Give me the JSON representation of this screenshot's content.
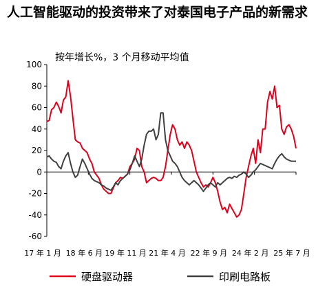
{
  "title": "人工智能驱动的投资带来了对泰国电子产品的新需求",
  "chart_data": {
    "type": "line",
    "subtitle": "按年增长%，3 个月移动平均值",
    "title": "",
    "xlabel": "",
    "ylabel": "",
    "ylim": [
      -60,
      100
    ],
    "yticks": [
      100,
      80,
      60,
      40,
      20,
      0,
      -20,
      -40,
      -60
    ],
    "x_start": "2017-01",
    "x_end": "2025-07",
    "xticks": [
      "17 年 1 月",
      "18 年 6 月",
      "19 年 11 月",
      "21 年 4 月",
      "22 年 9 月",
      "24 年 2 月",
      "25 年 7 月"
    ],
    "legend_position": "bottom",
    "grid": false,
    "series": [
      {
        "name": "硬盘驱动器",
        "color": "#e0001b",
        "values": [
          [
            0,
            47
          ],
          [
            1,
            48
          ],
          [
            2,
            58
          ],
          [
            3,
            60
          ],
          [
            4,
            65
          ],
          [
            5,
            61
          ],
          [
            6,
            55
          ],
          [
            7,
            67
          ],
          [
            8,
            70
          ],
          [
            9,
            85
          ],
          [
            10,
            70
          ],
          [
            11,
            50
          ],
          [
            12,
            30
          ],
          [
            13,
            28
          ],
          [
            14,
            27
          ],
          [
            15,
            22
          ],
          [
            16,
            20
          ],
          [
            17,
            18
          ],
          [
            18,
            12
          ],
          [
            19,
            8
          ],
          [
            20,
            0
          ],
          [
            21,
            -3
          ],
          [
            22,
            -6
          ],
          [
            23,
            -12
          ],
          [
            24,
            -16
          ],
          [
            25,
            -18
          ],
          [
            26,
            -20
          ],
          [
            27,
            -20
          ],
          [
            28,
            -15
          ],
          [
            29,
            -10
          ],
          [
            30,
            -8
          ],
          [
            31,
            -5
          ],
          [
            32,
            -6
          ],
          [
            33,
            -4
          ],
          [
            34,
            -2
          ],
          [
            35,
            5
          ],
          [
            36,
            8
          ],
          [
            37,
            12
          ],
          [
            38,
            22
          ],
          [
            39,
            20
          ],
          [
            40,
            5
          ],
          [
            41,
            0
          ],
          [
            42,
            -10
          ],
          [
            43,
            -8
          ],
          [
            44,
            -6
          ],
          [
            45,
            -5
          ],
          [
            46,
            -6
          ],
          [
            47,
            -8
          ],
          [
            48,
            -8
          ],
          [
            49,
            -5
          ],
          [
            50,
            5
          ],
          [
            51,
            20
          ],
          [
            52,
            35
          ],
          [
            53,
            44
          ],
          [
            54,
            40
          ],
          [
            55,
            30
          ],
          [
            56,
            25
          ],
          [
            57,
            28
          ],
          [
            58,
            22
          ],
          [
            59,
            28
          ],
          [
            60,
            25
          ],
          [
            61,
            20
          ],
          [
            62,
            10
          ],
          [
            63,
            0
          ],
          [
            64,
            -5
          ],
          [
            65,
            -10
          ],
          [
            66,
            -14
          ],
          [
            67,
            -12
          ],
          [
            68,
            -14
          ],
          [
            69,
            -10
          ],
          [
            70,
            -5
          ],
          [
            71,
            -10
          ],
          [
            72,
            -18
          ],
          [
            73,
            -28
          ],
          [
            74,
            -35
          ],
          [
            75,
            -33
          ],
          [
            76,
            -38
          ],
          [
            77,
            -30
          ],
          [
            78,
            -34
          ],
          [
            79,
            -38
          ],
          [
            80,
            -42
          ],
          [
            81,
            -40
          ],
          [
            82,
            -35
          ],
          [
            83,
            -20
          ],
          [
            84,
            -5
          ],
          [
            85,
            5
          ],
          [
            86,
            15
          ],
          [
            87,
            22
          ],
          [
            88,
            8
          ],
          [
            89,
            30
          ],
          [
            90,
            18
          ],
          [
            91,
            40
          ],
          [
            92,
            40
          ],
          [
            93,
            65
          ],
          [
            94,
            75
          ],
          [
            95,
            68
          ],
          [
            96,
            80
          ],
          [
            97,
            60
          ],
          [
            98,
            62
          ],
          [
            99,
            40
          ],
          [
            100,
            35
          ],
          [
            101,
            42
          ],
          [
            102,
            44
          ],
          [
            103,
            40
          ],
          [
            104,
            33
          ],
          [
            105,
            22
          ]
        ]
      },
      {
        "name": "印刷电路板",
        "color": "#404040",
        "values": [
          [
            0,
            14
          ],
          [
            1,
            15
          ],
          [
            2,
            12
          ],
          [
            3,
            10
          ],
          [
            4,
            9
          ],
          [
            5,
            5
          ],
          [
            6,
            3
          ],
          [
            7,
            10
          ],
          [
            8,
            15
          ],
          [
            9,
            18
          ],
          [
            10,
            8
          ],
          [
            11,
            0
          ],
          [
            12,
            -5
          ],
          [
            13,
            -3
          ],
          [
            14,
            5
          ],
          [
            15,
            12
          ],
          [
            16,
            8
          ],
          [
            17,
            3
          ],
          [
            18,
            -2
          ],
          [
            19,
            -6
          ],
          [
            20,
            -8
          ],
          [
            21,
            -9
          ],
          [
            22,
            -10
          ],
          [
            23,
            -12
          ],
          [
            24,
            -13
          ],
          [
            25,
            -15
          ],
          [
            26,
            -16
          ],
          [
            27,
            -17
          ],
          [
            28,
            -14
          ],
          [
            29,
            -10
          ],
          [
            30,
            -12
          ],
          [
            31,
            -8
          ],
          [
            32,
            -6
          ],
          [
            33,
            -4
          ],
          [
            34,
            -2
          ],
          [
            35,
            2
          ],
          [
            36,
            8
          ],
          [
            37,
            15
          ],
          [
            38,
            10
          ],
          [
            39,
            5
          ],
          [
            40,
            12
          ],
          [
            41,
            25
          ],
          [
            42,
            35
          ],
          [
            43,
            38
          ],
          [
            44,
            38
          ],
          [
            45,
            40
          ],
          [
            46,
            30
          ],
          [
            47,
            35
          ],
          [
            48,
            55
          ],
          [
            49,
            55
          ],
          [
            50,
            30
          ],
          [
            51,
            20
          ],
          [
            52,
            15
          ],
          [
            53,
            10
          ],
          [
            54,
            8
          ],
          [
            55,
            5
          ],
          [
            56,
            0
          ],
          [
            57,
            -5
          ],
          [
            58,
            -8
          ],
          [
            59,
            -10
          ],
          [
            60,
            -12
          ],
          [
            61,
            -10
          ],
          [
            62,
            -8
          ],
          [
            63,
            -10
          ],
          [
            64,
            -12
          ],
          [
            65,
            -15
          ],
          [
            66,
            -18
          ],
          [
            67,
            -15
          ],
          [
            68,
            -12
          ],
          [
            69,
            -10
          ],
          [
            70,
            -12
          ],
          [
            71,
            -14
          ],
          [
            72,
            -10
          ],
          [
            73,
            -12
          ],
          [
            74,
            -10
          ],
          [
            75,
            -8
          ],
          [
            76,
            -6
          ],
          [
            77,
            -5
          ],
          [
            78,
            -6
          ],
          [
            79,
            -4
          ],
          [
            80,
            -5
          ],
          [
            81,
            -3
          ],
          [
            82,
            -2
          ],
          [
            83,
            0
          ],
          [
            84,
            -2
          ],
          [
            85,
            -5
          ],
          [
            86,
            -3
          ],
          [
            87,
            0
          ],
          [
            88,
            2
          ],
          [
            89,
            5
          ],
          [
            90,
            8
          ],
          [
            91,
            7
          ],
          [
            92,
            6
          ],
          [
            93,
            5
          ],
          [
            94,
            4
          ],
          [
            95,
            3
          ],
          [
            96,
            8
          ],
          [
            97,
            12
          ],
          [
            98,
            15
          ],
          [
            99,
            17
          ],
          [
            100,
            14
          ],
          [
            101,
            12
          ],
          [
            102,
            11
          ],
          [
            103,
            10
          ],
          [
            104,
            10
          ],
          [
            105,
            10
          ]
        ]
      }
    ]
  }
}
